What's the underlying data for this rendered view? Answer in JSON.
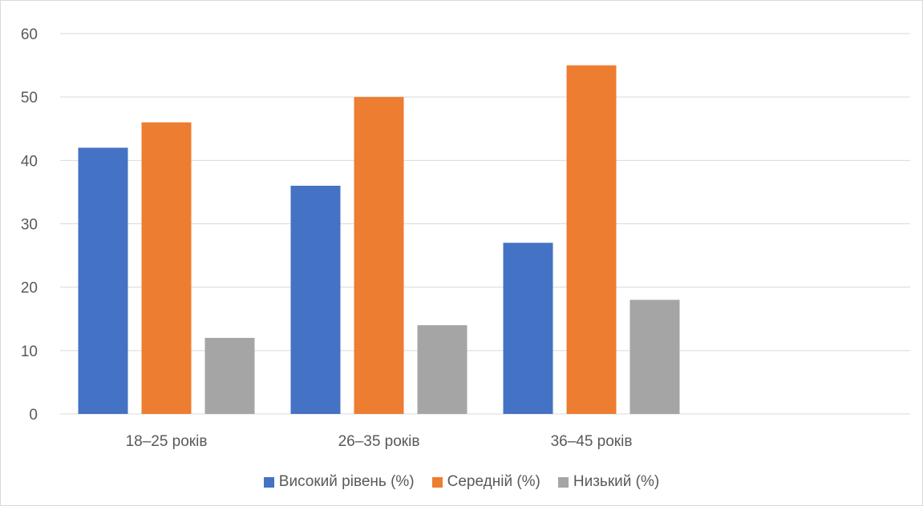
{
  "chart_data": {
    "type": "bar",
    "title": "",
    "xlabel": "",
    "ylabel": "",
    "categories": [
      "18–25 років",
      "26–35 років",
      "36–45 років",
      ""
    ],
    "series": [
      {
        "name": "Високий рівень (%)",
        "values": [
          42,
          36,
          27,
          null
        ],
        "color": "#4472C4"
      },
      {
        "name": "Середній (%)",
        "values": [
          46,
          50,
          55,
          null
        ],
        "color": "#ED7D31"
      },
      {
        "name": "Низький (%)",
        "values": [
          12,
          14,
          18,
          null
        ],
        "color": "#A5A5A5"
      }
    ],
    "ylim": [
      0,
      60
    ],
    "yticks": [
      0,
      10,
      20,
      30,
      40,
      50,
      60
    ],
    "grid": true,
    "legend_position": "bottom",
    "gridline_color": "#d9d9d9"
  }
}
